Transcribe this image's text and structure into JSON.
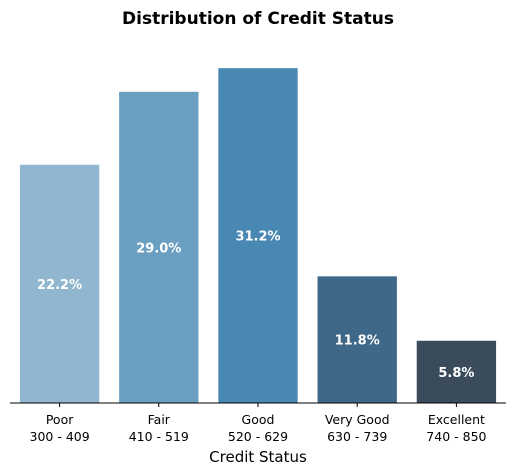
{
  "chart_data": {
    "type": "bar",
    "title": "Distribution of Credit Status",
    "xlabel": "Credit Status",
    "ylabel": "",
    "ylim": [
      0,
      32.8
    ],
    "categories": [
      {
        "name": "Poor",
        "range": "300 - 409"
      },
      {
        "name": "Fair",
        "range": "410 - 519"
      },
      {
        "name": "Good",
        "range": "520 - 629"
      },
      {
        "name": "Very Good",
        "range": "630 - 739"
      },
      {
        "name": "Excellent",
        "range": "740 - 850"
      }
    ],
    "values": [
      22.2,
      29.0,
      31.2,
      11.8,
      5.8
    ],
    "data_labels": [
      "22.2%",
      "29.0%",
      "31.2%",
      "11.8%",
      "5.8%"
    ],
    "colors": [
      "#90b6d0",
      "#6a9fc2",
      "#4a88b4",
      "#3f6787",
      "#3a4c5c"
    ],
    "grid": false,
    "legend": "none"
  }
}
